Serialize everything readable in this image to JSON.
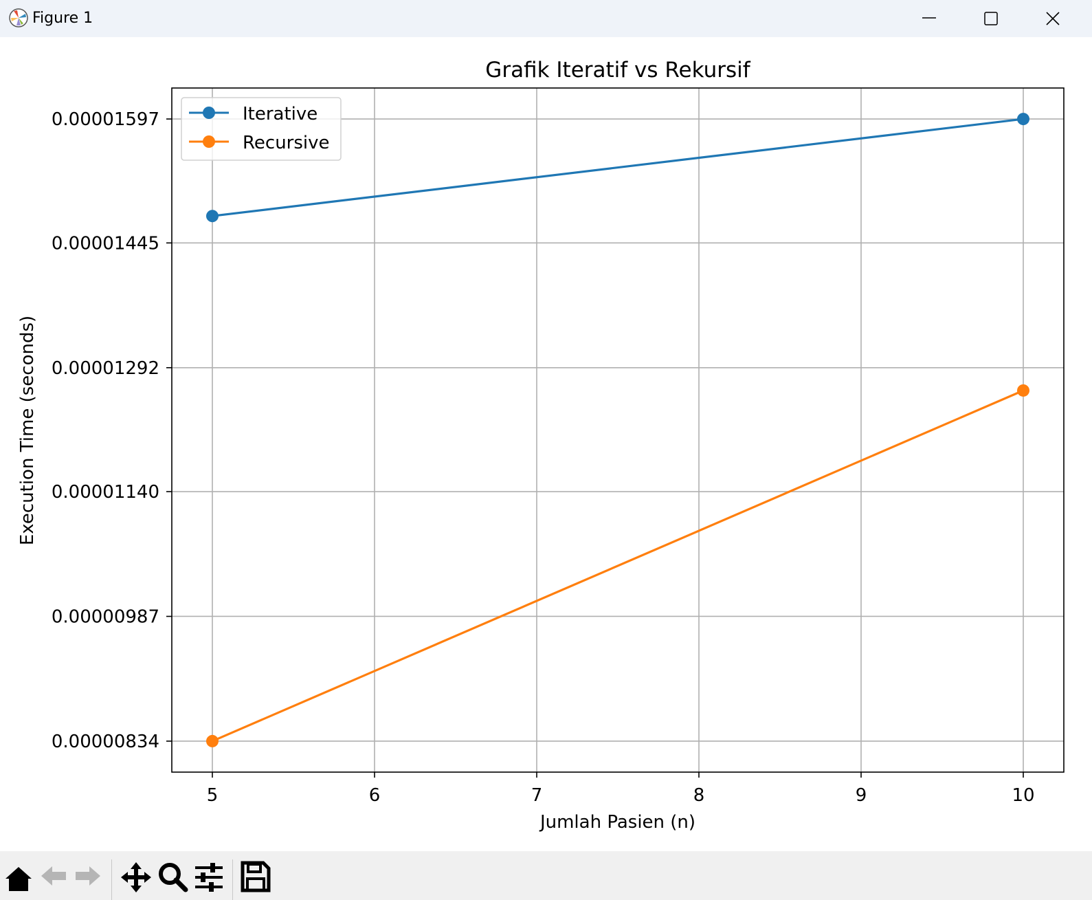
{
  "window": {
    "title": "Figure 1",
    "controls": [
      "minimize-icon",
      "maximize-icon",
      "close-icon"
    ]
  },
  "toolbar": {
    "tools": [
      "home-icon",
      "back-arrow-icon",
      "forward-arrow-icon",
      "pan-move-icon",
      "zoom-magnifier-icon",
      "configure-subplots-icon",
      "save-floppy-icon"
    ]
  },
  "chart_data": {
    "type": "line",
    "title": "Grafik Iteratif vs Rekursif",
    "xlabel": "Jumlah Pasien (n)",
    "ylabel": "Execution Time (seconds)",
    "xlim": [
      4.75,
      10.25
    ],
    "ylim": [
      7.96e-06,
      1.635e-05
    ],
    "xticks": [
      5,
      6,
      7,
      8,
      9,
      10
    ],
    "yticks": [
      8.34e-06,
      9.87e-06,
      1.14e-05,
      1.292e-05,
      1.445e-05,
      1.597e-05
    ],
    "ytick_labels": [
      "0.00000834",
      "0.00000987",
      "0.00001140",
      "0.00001292",
      "0.00001445",
      "0.00001597"
    ],
    "grid": true,
    "legend_position": "upper-left",
    "series": [
      {
        "name": "Iterative",
        "color": "#1f77b4",
        "x": [
          5,
          10
        ],
        "y": [
          1.478e-05,
          1.597e-05
        ],
        "marker": "circle"
      },
      {
        "name": "Recursive",
        "color": "#ff7f0e",
        "x": [
          5,
          10
        ],
        "y": [
          8.34e-06,
          1.264e-05
        ],
        "marker": "circle"
      }
    ]
  }
}
